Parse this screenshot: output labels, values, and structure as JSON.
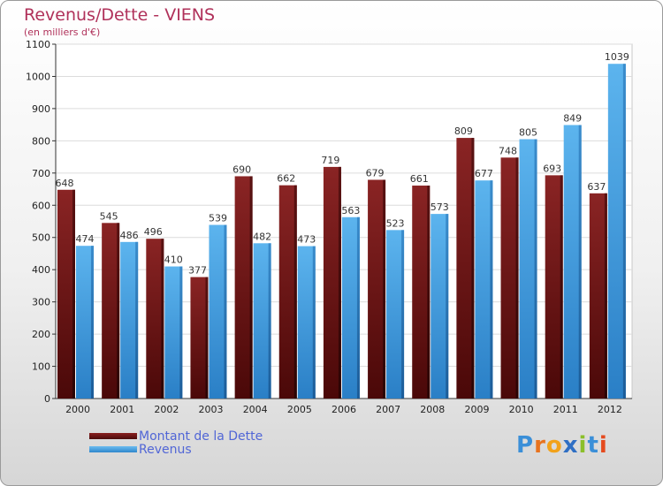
{
  "header": {
    "title": "Revenus/Dette - VIENS",
    "subtitle": "(en milliers d'€)"
  },
  "chart_data": {
    "type": "bar",
    "title": "Revenus/Dette - VIENS",
    "ylabel": "(en milliers d'€)",
    "xlabel": "",
    "categories": [
      "2000",
      "2001",
      "2002",
      "2003",
      "2004",
      "2005",
      "2006",
      "2007",
      "2008",
      "2009",
      "2010",
      "2011",
      "2012"
    ],
    "series": [
      {
        "name": "Montant de la Dette",
        "color": "#7b1c1c",
        "values": [
          648,
          545,
          496,
          377,
          690,
          662,
          719,
          679,
          661,
          809,
          748,
          693,
          637
        ]
      },
      {
        "name": "Revenus",
        "color": "#4aa3e6",
        "values": [
          474,
          486,
          410,
          539,
          482,
          473,
          563,
          523,
          573,
          677,
          805,
          849,
          1039
        ]
      }
    ],
    "ylim": [
      0,
      1100
    ],
    "yticks": [
      0,
      100,
      200,
      300,
      400,
      500,
      600,
      700,
      800,
      900,
      1000,
      1100
    ],
    "grid": true,
    "legend": "bottom-left"
  },
  "legend": {
    "debt_label": "Montant de la Dette",
    "revenue_label": "Revenus"
  },
  "logo": {
    "letters": [
      "P",
      "r",
      "o",
      "x",
      "i",
      "t",
      "i"
    ],
    "colors": [
      "#3a8fd8",
      "#e8731e",
      "#f2a21a",
      "#2f6fc4",
      "#8bbf2a",
      "#3a8fd8",
      "#e54a1e"
    ]
  }
}
